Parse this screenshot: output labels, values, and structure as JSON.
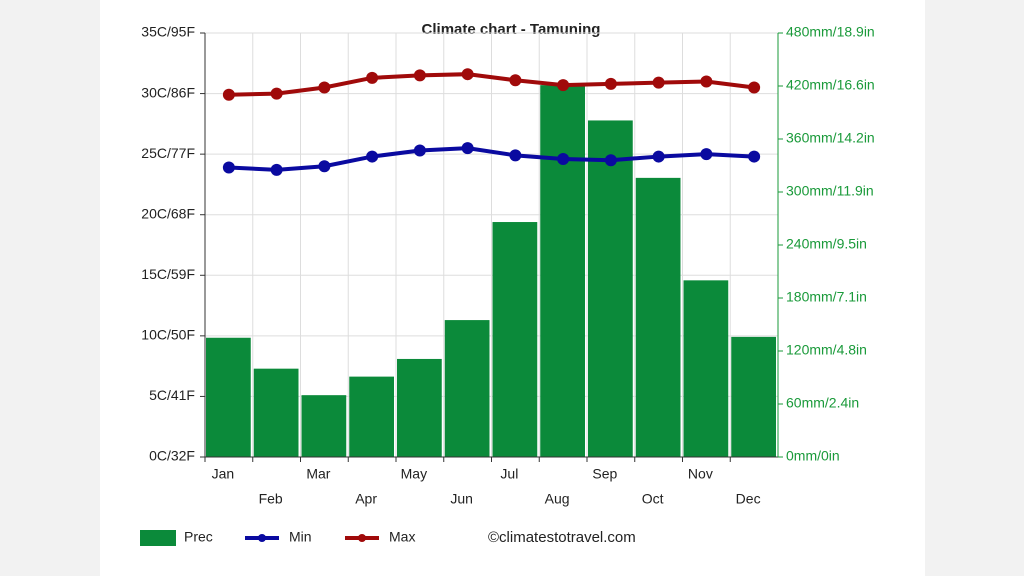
{
  "chart_data": {
    "type": "bar",
    "title": "Climate chart - Tamuning",
    "categories": [
      "Jan",
      "Feb",
      "Mar",
      "Apr",
      "May",
      "Jun",
      "Jul",
      "Aug",
      "Sep",
      "Oct",
      "Nov",
      "Dec"
    ],
    "series": [
      {
        "name": "Prec",
        "type": "bar",
        "axis": "y2",
        "color": "#0b8a3a",
        "values": [
          135,
          100,
          70,
          91,
          111,
          155,
          266,
          421,
          381,
          316,
          200,
          136
        ]
      },
      {
        "name": "Min",
        "type": "line",
        "color": "#0a0aa0",
        "values": [
          23.9,
          23.7,
          24.0,
          24.8,
          25.3,
          25.5,
          24.9,
          24.6,
          24.5,
          24.8,
          25.0,
          24.8
        ]
      },
      {
        "name": "Max",
        "type": "line",
        "color": "#a00a0a",
        "values": [
          29.9,
          30.0,
          30.5,
          31.3,
          31.5,
          31.6,
          31.1,
          30.7,
          30.8,
          30.9,
          31.0,
          30.5
        ]
      }
    ],
    "ylim": [
      0,
      35
    ],
    "yticks": [
      {
        "value": 0,
        "label": "0C/32F"
      },
      {
        "value": 5,
        "label": "5C/41F"
      },
      {
        "value": 10,
        "label": "10C/50F"
      },
      {
        "value": 15,
        "label": "15C/59F"
      },
      {
        "value": 20,
        "label": "20C/68F"
      },
      {
        "value": 25,
        "label": "25C/77F"
      },
      {
        "value": 30,
        "label": "30C/86F"
      },
      {
        "value": 35,
        "label": "35C/95F"
      }
    ],
    "y2lim": [
      0,
      480
    ],
    "y2ticks": [
      {
        "value": 0,
        "label": "0mm/0in"
      },
      {
        "value": 60,
        "label": "60mm/2.4in"
      },
      {
        "value": 120,
        "label": "120mm/4.8in"
      },
      {
        "value": 180,
        "label": "180mm/7.1in"
      },
      {
        "value": 240,
        "label": "240mm/9.5in"
      },
      {
        "value": 300,
        "label": "300mm/11.9in"
      },
      {
        "value": 360,
        "label": "360mm/14.2in"
      },
      {
        "value": 420,
        "label": "420mm/16.6in"
      },
      {
        "value": 480,
        "label": "480mm/18.9in"
      }
    ],
    "grid": true,
    "legend": "bottom",
    "source": "©climatestotravel.com"
  }
}
